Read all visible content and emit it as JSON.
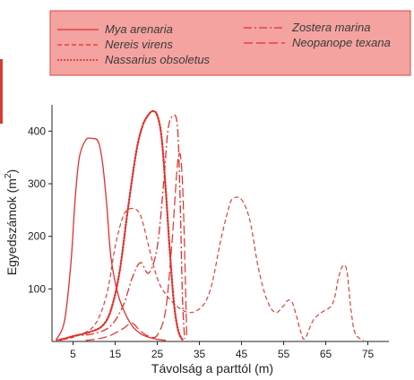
{
  "chart_data": {
    "type": "line",
    "xlabel": "Távolság a parttól (m)",
    "ylabel": "Egyedszámok (m²)",
    "ylabel_main": "Egyedszámok (m",
    "ylabel_sup": "2",
    "ylabel_end": ")",
    "xlim": [
      0,
      80
    ],
    "ylim": [
      0,
      450
    ],
    "x_ticks": [
      5,
      15,
      25,
      35,
      45,
      55,
      65,
      75
    ],
    "y_ticks": [
      100,
      200,
      300,
      400
    ],
    "legend_placement": "top",
    "colors": {
      "series": "#e0302b",
      "legend_bg": "#f4a3a0",
      "legend_border": "#d94a44",
      "axis": "#222222"
    },
    "series": [
      {
        "name": "Mya arenaria",
        "style": "solid",
        "x": [
          1,
          3,
          4.5,
          5.5,
          6.5,
          8,
          9.5,
          11,
          12,
          13,
          14,
          15.5,
          17,
          19,
          21,
          23,
          25,
          27
        ],
        "y": [
          3,
          40,
          150,
          270,
          350,
          383,
          386,
          380,
          340,
          260,
          160,
          95,
          60,
          30,
          15,
          8,
          4,
          2
        ]
      },
      {
        "name": "Nereis virens",
        "style": "dashed",
        "x": [
          1,
          5,
          10,
          13,
          15,
          17,
          19,
          21,
          23,
          25,
          27,
          30,
          33,
          36,
          38,
          40,
          42,
          43,
          45,
          47,
          49,
          51,
          53,
          55,
          56,
          57,
          58,
          59,
          60,
          62,
          64,
          66,
          67,
          68,
          69,
          70,
          71,
          72,
          74
        ],
        "y": [
          2,
          8,
          30,
          90,
          180,
          240,
          253,
          240,
          180,
          120,
          90,
          65,
          55,
          70,
          110,
          190,
          255,
          272,
          270,
          230,
          140,
          80,
          55,
          68,
          78,
          75,
          50,
          20,
          5,
          40,
          55,
          65,
          80,
          120,
          143,
          135,
          60,
          15,
          2
        ]
      },
      {
        "name": "Nassarius obsoletus",
        "style": "dotted",
        "x": [
          2,
          5,
          9,
          12,
          14,
          16,
          18,
          20,
          21.5,
          23,
          24,
          25,
          26,
          27,
          28,
          29,
          30,
          31
        ],
        "y": [
          3,
          10,
          18,
          30,
          60,
          130,
          250,
          360,
          410,
          432,
          438,
          430,
          390,
          290,
          170,
          70,
          20,
          3
        ]
      },
      {
        "name": "Zostera marina",
        "style": "dashdot",
        "x": [
          1,
          5,
          10,
          14,
          17,
          19,
          21,
          23,
          25,
          26.5,
          27.5,
          28.5,
          29.5,
          30,
          30.5,
          31,
          31.5
        ],
        "y": [
          2,
          10,
          15,
          30,
          70,
          120,
          150,
          130,
          180,
          300,
          400,
          428,
          425,
          380,
          250,
          80,
          5
        ]
      },
      {
        "name": "Neopanope texana",
        "style": "longdash",
        "x": [
          8,
          11,
          14,
          17,
          19,
          21,
          23,
          25,
          27,
          28.5,
          30,
          31,
          32
        ],
        "y": [
          2,
          5,
          12,
          25,
          35,
          20,
          10,
          12,
          60,
          190,
          350,
          300,
          10
        ]
      }
    ]
  }
}
